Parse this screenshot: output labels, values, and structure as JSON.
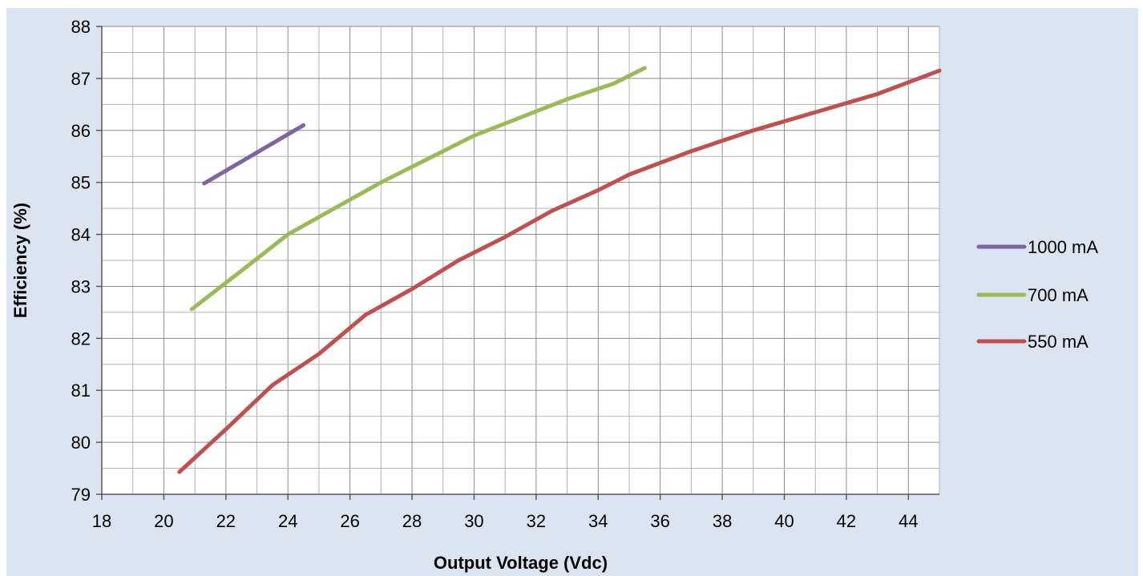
{
  "chart_data": {
    "type": "line",
    "title": "",
    "xlabel": "Output Voltage (Vdc)",
    "ylabel": "Efficiency (%)",
    "xlim": [
      18,
      45
    ],
    "ylim": [
      79,
      88
    ],
    "x_ticks": [
      18,
      20,
      22,
      24,
      26,
      28,
      30,
      32,
      34,
      36,
      38,
      40,
      42,
      44
    ],
    "y_ticks": [
      79,
      80,
      81,
      82,
      83,
      84,
      85,
      86,
      87,
      88
    ],
    "x_tick_labels": [
      "18",
      "20",
      "22",
      "24",
      "26",
      "28",
      "30",
      "32",
      "34",
      "36",
      "38",
      "40",
      "42",
      "44"
    ],
    "y_tick_labels": [
      "79",
      "80",
      "81",
      "82",
      "83",
      "84",
      "85",
      "86",
      "87",
      "88"
    ],
    "grid": true,
    "legend_position": "right",
    "series": [
      {
        "name": "1000 mA",
        "color": "#8064a2",
        "points": [
          [
            21.3,
            84.98
          ],
          [
            24.5,
            86.1
          ]
        ]
      },
      {
        "name": "700 mA",
        "color": "#9bbb59",
        "points": [
          [
            20.9,
            82.56
          ],
          [
            22.5,
            83.3
          ],
          [
            24.0,
            84.0
          ],
          [
            25.5,
            84.5
          ],
          [
            27.0,
            85.0
          ],
          [
            28.5,
            85.45
          ],
          [
            30.0,
            85.9
          ],
          [
            31.5,
            86.25
          ],
          [
            33.0,
            86.6
          ],
          [
            34.5,
            86.9
          ],
          [
            35.5,
            87.2
          ]
        ]
      },
      {
        "name": "550 mA",
        "color": "#c0504d",
        "points": [
          [
            20.5,
            79.43
          ],
          [
            22.0,
            80.25
          ],
          [
            23.5,
            81.1
          ],
          [
            25.0,
            81.7
          ],
          [
            26.5,
            82.45
          ],
          [
            28.0,
            82.95
          ],
          [
            29.5,
            83.5
          ],
          [
            31.0,
            83.95
          ],
          [
            32.5,
            84.45
          ],
          [
            34.0,
            84.85
          ],
          [
            35.0,
            85.15
          ],
          [
            37.0,
            85.6
          ],
          [
            39.0,
            86.0
          ],
          [
            41.0,
            86.35
          ],
          [
            43.0,
            86.7
          ],
          [
            45.0,
            87.15
          ]
        ]
      }
    ]
  }
}
